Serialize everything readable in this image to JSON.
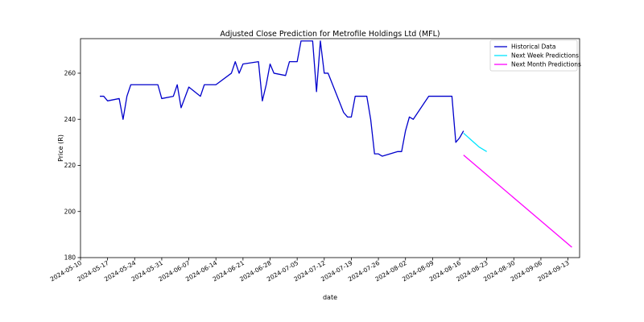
{
  "chart_data": {
    "type": "line",
    "title": "Adjusted Close Prediction for Metrofile Holdings Ltd (MFL)",
    "xlabel": "date",
    "ylabel": "Price (R)",
    "xlim": [
      "2024-05-10",
      "2024-09-16"
    ],
    "ylim": [
      180,
      275
    ],
    "x_ticks": [
      "2024-05-10",
      "2024-05-17",
      "2024-05-24",
      "2024-05-31",
      "2024-06-07",
      "2024-06-14",
      "2024-06-21",
      "2024-06-28",
      "2024-07-05",
      "2024-07-12",
      "2024-07-19",
      "2024-07-26",
      "2024-08-02",
      "2024-08-09",
      "2024-08-16",
      "2024-08-23",
      "2024-08-30",
      "2024-09-06",
      "2024-09-13"
    ],
    "y_ticks": [
      180,
      200,
      220,
      240,
      260
    ],
    "grid": false,
    "legend_position": "top-right",
    "series": [
      {
        "name": "Historical Data",
        "color": "#0000cc",
        "points": [
          {
            "x": "2024-05-15",
            "y": 250
          },
          {
            "x": "2024-05-16",
            "y": 250
          },
          {
            "x": "2024-05-17",
            "y": 248
          },
          {
            "x": "2024-05-20",
            "y": 249
          },
          {
            "x": "2024-05-21",
            "y": 240
          },
          {
            "x": "2024-05-22",
            "y": 250
          },
          {
            "x": "2024-05-23",
            "y": 255
          },
          {
            "x": "2024-05-30",
            "y": 255
          },
          {
            "x": "2024-05-31",
            "y": 249
          },
          {
            "x": "2024-06-03",
            "y": 250
          },
          {
            "x": "2024-06-04",
            "y": 255
          },
          {
            "x": "2024-06-05",
            "y": 245
          },
          {
            "x": "2024-06-07",
            "y": 254
          },
          {
            "x": "2024-06-10",
            "y": 250
          },
          {
            "x": "2024-06-11",
            "y": 255
          },
          {
            "x": "2024-06-14",
            "y": 255
          },
          {
            "x": "2024-06-18",
            "y": 260
          },
          {
            "x": "2024-06-19",
            "y": 265
          },
          {
            "x": "2024-06-20",
            "y": 260
          },
          {
            "x": "2024-06-21",
            "y": 264
          },
          {
            "x": "2024-06-25",
            "y": 265
          },
          {
            "x": "2024-06-26",
            "y": 248
          },
          {
            "x": "2024-06-27",
            "y": 255
          },
          {
            "x": "2024-06-28",
            "y": 264
          },
          {
            "x": "2024-06-29",
            "y": 260
          },
          {
            "x": "2024-07-02",
            "y": 259
          },
          {
            "x": "2024-07-03",
            "y": 265
          },
          {
            "x": "2024-07-05",
            "y": 265
          },
          {
            "x": "2024-07-06",
            "y": 274
          },
          {
            "x": "2024-07-09",
            "y": 274
          },
          {
            "x": "2024-07-10",
            "y": 252
          },
          {
            "x": "2024-07-11",
            "y": 274
          },
          {
            "x": "2024-07-12",
            "y": 260
          },
          {
            "x": "2024-07-13",
            "y": 260
          },
          {
            "x": "2024-07-17",
            "y": 243
          },
          {
            "x": "2024-07-18",
            "y": 241
          },
          {
            "x": "2024-07-19",
            "y": 241
          },
          {
            "x": "2024-07-20",
            "y": 250
          },
          {
            "x": "2024-07-23",
            "y": 250
          },
          {
            "x": "2024-07-24",
            "y": 240
          },
          {
            "x": "2024-07-25",
            "y": 225
          },
          {
            "x": "2024-07-26",
            "y": 225
          },
          {
            "x": "2024-07-27",
            "y": 224
          },
          {
            "x": "2024-07-31",
            "y": 226
          },
          {
            "x": "2024-08-01",
            "y": 226
          },
          {
            "x": "2024-08-02",
            "y": 235
          },
          {
            "x": "2024-08-03",
            "y": 241
          },
          {
            "x": "2024-08-04",
            "y": 240
          },
          {
            "x": "2024-08-08",
            "y": 250
          },
          {
            "x": "2024-08-14",
            "y": 250
          },
          {
            "x": "2024-08-15",
            "y": 230
          },
          {
            "x": "2024-08-16",
            "y": 232
          },
          {
            "x": "2024-08-17",
            "y": 235
          }
        ]
      },
      {
        "name": "Next Week Predictions",
        "color": "#00e5ff",
        "points": [
          {
            "x": "2024-08-17",
            "y": 234
          },
          {
            "x": "2024-08-18",
            "y": 232.5
          },
          {
            "x": "2024-08-19",
            "y": 231
          },
          {
            "x": "2024-08-20",
            "y": 229.5
          },
          {
            "x": "2024-08-21",
            "y": 228
          },
          {
            "x": "2024-08-22",
            "y": 227
          },
          {
            "x": "2024-08-23",
            "y": 226
          }
        ]
      },
      {
        "name": "Next Month Predictions",
        "color": "#ff00ff",
        "points": [
          {
            "x": "2024-08-17",
            "y": 224.5
          },
          {
            "x": "2024-09-14",
            "y": 184.5
          }
        ]
      }
    ]
  }
}
